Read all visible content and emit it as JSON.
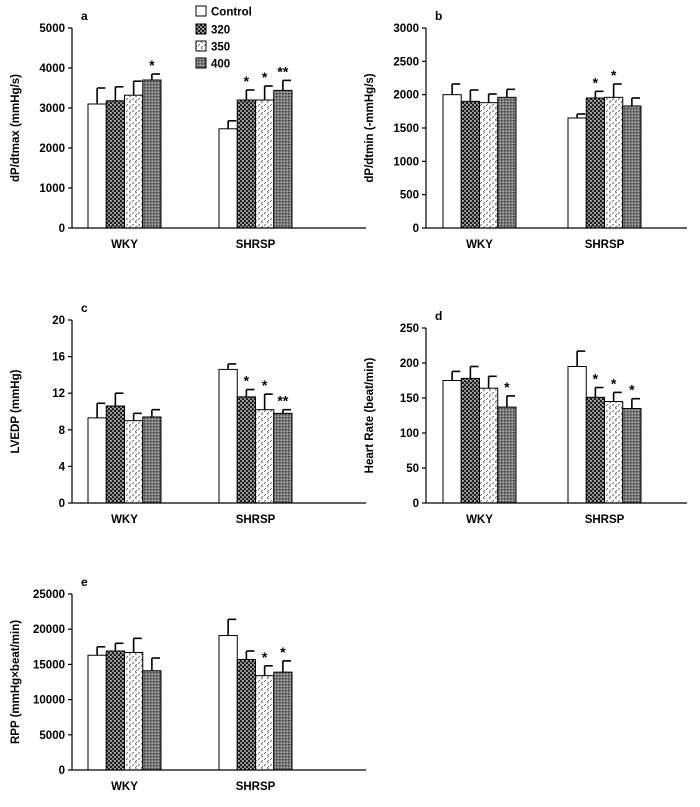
{
  "legend": {
    "placement": "top-center",
    "entries": [
      "Control",
      "320",
      "350",
      "400"
    ]
  },
  "chart_data": [
    {
      "panel": "a",
      "type": "bar",
      "ylabel": "dP/dtmax (mmHg/s)",
      "ylim": [
        0,
        5000
      ],
      "yticks": [
        "0",
        "1000",
        "2000",
        "3000",
        "4000",
        "5000"
      ],
      "categories": [
        "WKY",
        "SHRSP"
      ],
      "series": [
        {
          "name": "Control",
          "values": [
            3100,
            2480
          ],
          "errors": [
            400,
            200
          ],
          "sig": [
            "",
            ""
          ]
        },
        {
          "name": "320",
          "values": [
            3180,
            3200
          ],
          "errors": [
            350,
            250
          ],
          "sig": [
            "",
            "*"
          ]
        },
        {
          "name": "350",
          "values": [
            3320,
            3200
          ],
          "errors": [
            350,
            350
          ],
          "sig": [
            "",
            "*"
          ]
        },
        {
          "name": "400",
          "values": [
            3700,
            3440
          ],
          "errors": [
            150,
            250
          ],
          "sig": [
            "*",
            "**"
          ]
        }
      ]
    },
    {
      "panel": "b",
      "type": "bar",
      "ylabel": "dP/dtmin (-mmHg/s)",
      "ylim": [
        0,
        3000
      ],
      "yticks": [
        "0",
        "500",
        "1000",
        "1500",
        "2000",
        "2500",
        "3000"
      ],
      "categories": [
        "WKY",
        "SHRSP"
      ],
      "series": [
        {
          "name": "Control",
          "values": [
            2000,
            1650
          ],
          "errors": [
            160,
            60
          ],
          "sig": [
            "",
            ""
          ]
        },
        {
          "name": "320",
          "values": [
            1900,
            1950
          ],
          "errors": [
            170,
            100
          ],
          "sig": [
            "",
            "*"
          ]
        },
        {
          "name": "350",
          "values": [
            1880,
            1960
          ],
          "errors": [
            130,
            200
          ],
          "sig": [
            "",
            "*"
          ]
        },
        {
          "name": "400",
          "values": [
            1960,
            1830
          ],
          "errors": [
            120,
            120
          ],
          "sig": [
            "",
            ""
          ]
        }
      ]
    },
    {
      "panel": "c",
      "type": "bar",
      "ylabel": "LVEDP (mmHg)",
      "ylim": [
        0,
        20
      ],
      "yticks": [
        "0",
        "4",
        "8",
        "12",
        "16",
        "20"
      ],
      "categories": [
        "WKY",
        "SHRSP"
      ],
      "series": [
        {
          "name": "Control",
          "values": [
            9.3,
            14.6
          ],
          "errors": [
            1.6,
            0.6
          ],
          "sig": [
            "",
            ""
          ]
        },
        {
          "name": "320",
          "values": [
            10.6,
            11.6
          ],
          "errors": [
            1.4,
            0.8
          ],
          "sig": [
            "",
            "*"
          ]
        },
        {
          "name": "350",
          "values": [
            9.0,
            10.2
          ],
          "errors": [
            0.8,
            1.7
          ],
          "sig": [
            "",
            "*"
          ]
        },
        {
          "name": "400",
          "values": [
            9.4,
            9.8
          ],
          "errors": [
            0.8,
            0.4
          ],
          "sig": [
            "",
            "**"
          ]
        }
      ]
    },
    {
      "panel": "d",
      "type": "bar",
      "ylabel": "Heart Rate (beat/min)",
      "ylim": [
        0,
        250
      ],
      "yticks": [
        "0",
        "50",
        "100",
        "150",
        "200",
        "250"
      ],
      "categories": [
        "WKY",
        "SHRSP"
      ],
      "series": [
        {
          "name": "Control",
          "values": [
            175,
            195
          ],
          "errors": [
            13,
            22
          ],
          "sig": [
            "",
            ""
          ]
        },
        {
          "name": "320",
          "values": [
            178,
            151
          ],
          "errors": [
            17,
            14
          ],
          "sig": [
            "",
            "*"
          ]
        },
        {
          "name": "350",
          "values": [
            164,
            145
          ],
          "errors": [
            17,
            13
          ],
          "sig": [
            "",
            "*"
          ]
        },
        {
          "name": "400",
          "values": [
            137,
            135
          ],
          "errors": [
            16,
            14
          ],
          "sig": [
            "*",
            "*"
          ]
        }
      ]
    },
    {
      "panel": "e",
      "type": "bar",
      "ylabel": "RPP (mmHg×beat/min)",
      "ylim": [
        0,
        25000
      ],
      "yticks": [
        "0",
        "5000",
        "10000",
        "15000",
        "20000",
        "25000"
      ],
      "categories": [
        "WKY",
        "SHRSP"
      ],
      "series": [
        {
          "name": "Control",
          "values": [
            16300,
            19100
          ],
          "errors": [
            1200,
            2300
          ],
          "sig": [
            "",
            ""
          ]
        },
        {
          "name": "320",
          "values": [
            16900,
            15700
          ],
          "errors": [
            1100,
            1200
          ],
          "sig": [
            "",
            ""
          ]
        },
        {
          "name": "350",
          "values": [
            16700,
            13400
          ],
          "errors": [
            2000,
            1400
          ],
          "sig": [
            "",
            "*"
          ]
        },
        {
          "name": "400",
          "values": [
            14100,
            13900
          ],
          "errors": [
            1800,
            1600
          ],
          "sig": [
            "",
            "*"
          ]
        }
      ]
    }
  ]
}
